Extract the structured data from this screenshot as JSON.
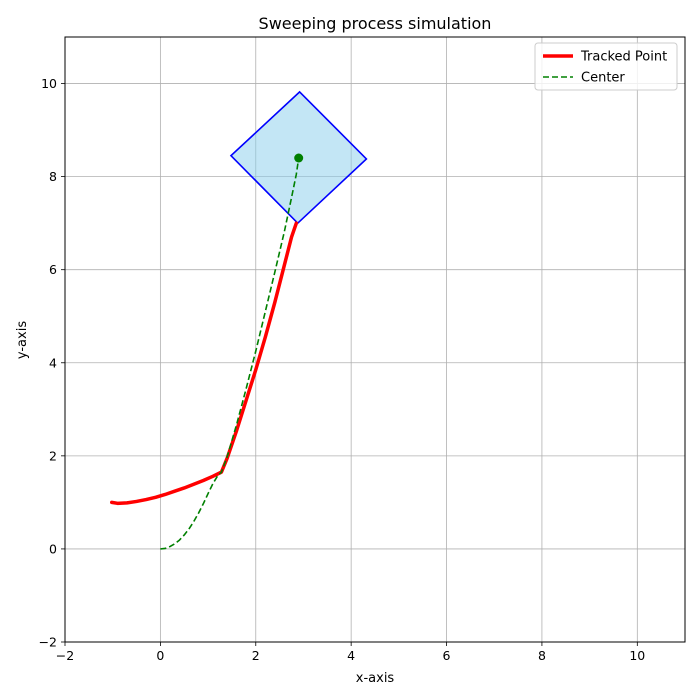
{
  "chart_data": {
    "type": "line",
    "title": "Sweeping process simulation",
    "xlabel": "x-axis",
    "ylabel": "y-axis",
    "xlim": [
      -2,
      11
    ],
    "ylim": [
      -2,
      11
    ],
    "xticks": [
      -2,
      0,
      2,
      4,
      6,
      8,
      10
    ],
    "yticks": [
      -2,
      0,
      2,
      4,
      6,
      8,
      10
    ],
    "xtick_labels": [
      "−2",
      "0",
      "2",
      "4",
      "6",
      "8",
      "10"
    ],
    "ytick_labels": [
      "−2",
      "0",
      "2",
      "4",
      "6",
      "8",
      "10"
    ],
    "grid": true,
    "legend_position": "top-right",
    "series": [
      {
        "name": "Tracked Point",
        "style": "solid",
        "color": "#ff0000",
        "points": [
          [
            -1.02,
            1.0
          ],
          [
            -0.9,
            0.98
          ],
          [
            -0.7,
            0.99
          ],
          [
            -0.5,
            1.02
          ],
          [
            -0.3,
            1.06
          ],
          [
            -0.1,
            1.11
          ],
          [
            0.1,
            1.17
          ],
          [
            0.3,
            1.24
          ],
          [
            0.5,
            1.31
          ],
          [
            0.7,
            1.39
          ],
          [
            0.9,
            1.47
          ],
          [
            1.1,
            1.56
          ],
          [
            1.28,
            1.65
          ],
          [
            1.4,
            1.95
          ],
          [
            1.6,
            2.55
          ],
          [
            1.8,
            3.2
          ],
          [
            2.0,
            3.85
          ],
          [
            2.2,
            4.55
          ],
          [
            2.4,
            5.3
          ],
          [
            2.6,
            6.1
          ],
          [
            2.75,
            6.7
          ],
          [
            2.85,
            7.0
          ]
        ]
      },
      {
        "name": "Center",
        "style": "dashed",
        "color": "#008000",
        "points": [
          [
            0.0,
            0.0
          ],
          [
            0.1,
            0.01
          ],
          [
            0.2,
            0.05
          ],
          [
            0.3,
            0.11
          ],
          [
            0.4,
            0.19
          ],
          [
            0.5,
            0.3
          ],
          [
            0.6,
            0.43
          ],
          [
            0.7,
            0.59
          ],
          [
            0.8,
            0.77
          ],
          [
            0.9,
            0.97
          ],
          [
            1.0,
            1.19
          ],
          [
            1.1,
            1.4
          ],
          [
            1.2,
            1.57
          ],
          [
            1.28,
            1.65
          ],
          [
            1.4,
            1.98
          ],
          [
            1.6,
            2.68
          ],
          [
            1.8,
            3.45
          ],
          [
            2.0,
            4.25
          ],
          [
            2.2,
            5.1
          ],
          [
            2.4,
            5.95
          ],
          [
            2.6,
            6.82
          ],
          [
            2.75,
            7.55
          ],
          [
            2.85,
            8.05
          ],
          [
            2.9,
            8.4
          ]
        ]
      }
    ],
    "center_marker": {
      "x": 2.9,
      "y": 8.4,
      "color": "#008000"
    },
    "square": {
      "vertices": [
        [
          2.92,
          9.82
        ],
        [
          4.32,
          8.38
        ],
        [
          2.88,
          7.0
        ],
        [
          1.48,
          8.45
        ]
      ],
      "fill": "#87ceeb",
      "fill_opacity": 0.5,
      "edge": "#0000ff"
    }
  }
}
